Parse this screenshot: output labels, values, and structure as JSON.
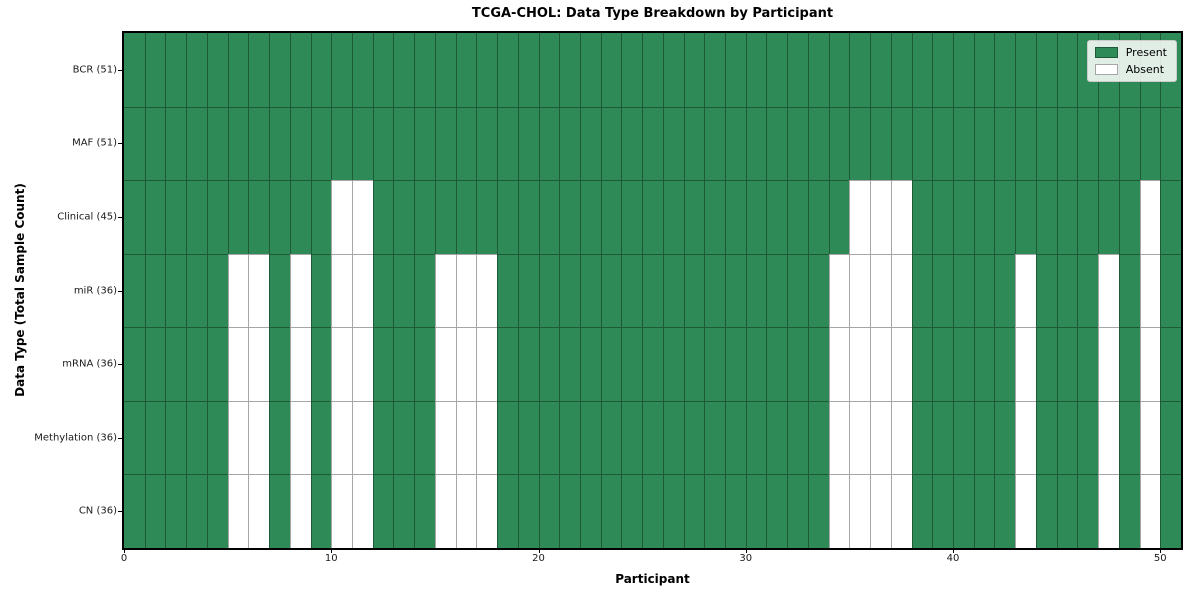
{
  "title": "TCGA-CHOL: Data Type Breakdown by Participant",
  "axes": {
    "x_label": "Participant",
    "y_label": "Data Type (Total Sample Count)"
  },
  "legend": {
    "position": "upper right",
    "entries": [
      {
        "label": "Present",
        "color": "#2E8B57"
      },
      {
        "label": "Absent",
        "color": "#FFFFFF"
      }
    ]
  },
  "colors": {
    "present": "#2E8B57",
    "absent": "#FFFFFF",
    "gridline": "rgba(0,0,0,0.35)",
    "spine": "#000000"
  },
  "chart_data": {
    "type": "heatmap",
    "title": "TCGA-CHOL: Data Type Breakdown by Participant",
    "xlabel": "Participant",
    "ylabel": "Data Type (Total Sample Count)",
    "n_participants": 51,
    "x_range": [
      0,
      51
    ],
    "x_ticks": [
      0,
      10,
      20,
      30,
      40,
      50
    ],
    "grid": true,
    "cell_values": {
      "present": 1,
      "absent": 0
    },
    "rows": [
      {
        "label": "BCR (51)",
        "data_type": "BCR",
        "present_count": 51,
        "absent_participants": []
      },
      {
        "label": "MAF (51)",
        "data_type": "MAF",
        "present_count": 51,
        "absent_participants": []
      },
      {
        "label": "Clinical (45)",
        "data_type": "Clinical",
        "present_count": 45,
        "absent_participants": [
          10,
          11,
          35,
          36,
          37,
          49
        ]
      },
      {
        "label": "miR (36)",
        "data_type": "miR",
        "present_count": 36,
        "absent_participants": [
          5,
          6,
          8,
          10,
          11,
          15,
          16,
          17,
          34,
          35,
          36,
          37,
          43,
          47,
          49
        ]
      },
      {
        "label": "mRNA (36)",
        "data_type": "mRNA",
        "present_count": 36,
        "absent_participants": [
          5,
          6,
          8,
          10,
          11,
          15,
          16,
          17,
          34,
          35,
          36,
          37,
          43,
          47,
          49
        ]
      },
      {
        "label": "Methylation (36)",
        "data_type": "Methylation",
        "present_count": 36,
        "absent_participants": [
          5,
          6,
          8,
          10,
          11,
          15,
          16,
          17,
          34,
          35,
          36,
          37,
          43,
          47,
          49
        ]
      },
      {
        "label": "CN (36)",
        "data_type": "CN",
        "present_count": 36,
        "absent_participants": [
          5,
          6,
          8,
          10,
          11,
          15,
          16,
          17,
          34,
          35,
          36,
          37,
          43,
          47,
          49
        ]
      }
    ]
  }
}
